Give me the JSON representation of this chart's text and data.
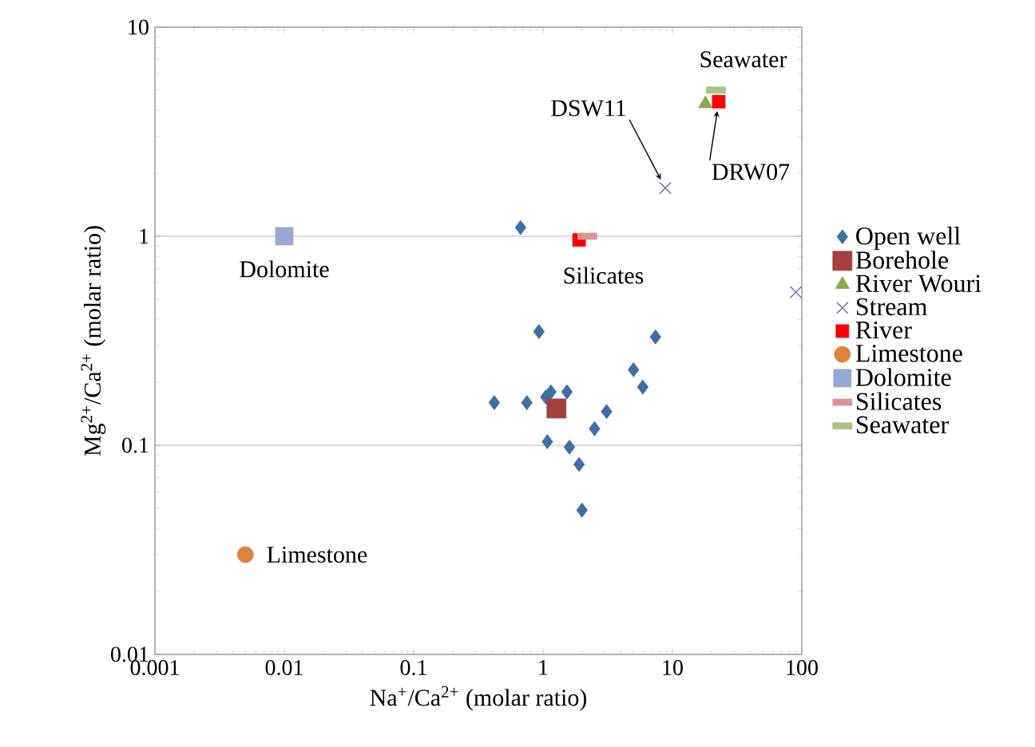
{
  "chart_data": {
    "type": "scatter",
    "xlabel": "Na$^{+}$/Ca$^{2+}$ (molar ratio)",
    "ylabel": "Mg$^{2+}$/Ca$^{2+}$ (molar ratio)",
    "log": "xy",
    "grid": "y",
    "legend": "right",
    "xlim": [
      0.001,
      100
    ],
    "ylim": [
      0.01,
      10
    ],
    "xticks": [
      0.001,
      0.01,
      0.1,
      1,
      10,
      100
    ],
    "yticks": [
      0.01,
      0.1,
      1,
      10
    ],
    "series": [
      {
        "name": "Open well",
        "color": "#3d6ea8",
        "marker": "diamond",
        "x": [
          0.67,
          0.93,
          7.4,
          5.0,
          5.9,
          0.42,
          0.75,
          1.15,
          1.53,
          1.05,
          3.1,
          2.5,
          1.08,
          1.6,
          1.9,
          2.0
        ],
        "values": [
          1.1,
          0.35,
          0.33,
          0.23,
          0.19,
          0.16,
          0.16,
          0.18,
          0.18,
          0.17,
          0.145,
          0.12,
          0.104,
          0.098,
          0.081,
          0.049
        ]
      },
      {
        "name": "Borehole",
        "color": "#a5403f",
        "marker": "square",
        "x": [
          1.27
        ],
        "values": [
          0.15
        ]
      },
      {
        "name": "River Wouri",
        "color": "#8aaa4e",
        "marker": "triangle",
        "x": [
          18
        ],
        "values": [
          4.3
        ]
      },
      {
        "name": "Stream",
        "color": "#8064a2",
        "marker": "cross",
        "x": [
          8.8,
          90
        ],
        "values": [
          1.7,
          0.54
        ]
      },
      {
        "name": "River",
        "color": "#ff0000",
        "marker": "square",
        "x": [
          1.9,
          22.8
        ],
        "values": [
          0.96,
          4.4
        ]
      },
      {
        "name": "Limestone",
        "color": "#e0823a",
        "marker": "circle",
        "x": [
          0.005
        ],
        "values": [
          0.03
        ]
      },
      {
        "name": "Dolomite",
        "color": "#95a9d4",
        "marker": "square",
        "x": [
          0.01
        ],
        "values": [
          1.0
        ]
      },
      {
        "name": "Silicates",
        "color": "#d99594",
        "marker": "square",
        "x": [
          2.2
        ],
        "values": [
          1.0
        ]
      },
      {
        "name": "Seawater",
        "color": "#a9c47f",
        "marker": "square",
        "x": [
          21.7
        ],
        "values": [
          5.0
        ]
      }
    ],
    "annotations": [
      {
        "text": "Seawater",
        "x": 21.7,
        "y": 5.0
      },
      {
        "text": "DSW11",
        "x": 8.8,
        "y": 1.7
      },
      {
        "text": "DRW07",
        "x": 22.8,
        "y": 4.4
      },
      {
        "text": "Dolomite",
        "x": 0.01,
        "y": 1.0
      },
      {
        "text": "Silicates",
        "x": 2.2,
        "y": 1.0
      },
      {
        "text": "Limestone",
        "x": 0.005,
        "y": 0.03
      }
    ]
  }
}
